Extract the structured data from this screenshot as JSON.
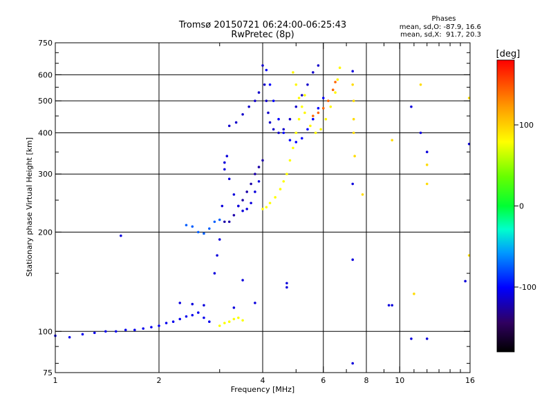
{
  "chart_data": {
    "type": "scatter",
    "title": "Tromsø 20150721 06:24:00-06:25:43",
    "subtitle": "RwPretec (8p)",
    "xlabel": "Frequency [MHz]",
    "ylabel": "Stationary phase Virtual Height [km]",
    "x_scale": "log",
    "y_scale": "log",
    "xlim": [
      1,
      16
    ],
    "ylim": [
      75,
      750
    ],
    "x_ticks": [
      1,
      2,
      4,
      6,
      8,
      10,
      16
    ],
    "x_tick_labels": [
      "1",
      "2",
      "4",
      "6",
      "8",
      "10",
      "16"
    ],
    "x_gridlines": [
      2,
      4,
      6,
      8,
      10
    ],
    "x_minor_ticks": [
      3,
      5,
      7,
      9,
      11,
      12,
      13,
      14,
      15
    ],
    "y_ticks": [
      75,
      100,
      200,
      300,
      400,
      500,
      600,
      750
    ],
    "y_tick_labels": [
      "75",
      "100",
      "200",
      "300",
      "400",
      "500",
      "600",
      "750"
    ],
    "y_gridlines": [
      100,
      200,
      300,
      400,
      500,
      600
    ],
    "y_minor_ticks": [
      80,
      90,
      150,
      250,
      350,
      450,
      550,
      650,
      700
    ],
    "grid": true,
    "phase_box": {
      "header": "Phases",
      "line1": "mean, sd,O: -87.9, 16.6",
      "line2": "mean, sd,X:  91.7, 20.3"
    },
    "colorbar": {
      "label": "[deg]",
      "range": [
        -180,
        180
      ],
      "ticks": [
        100,
        0,
        -100
      ],
      "tick_labels": [
        "100",
        "0",
        "-100"
      ]
    },
    "traces": [
      {
        "points": [
          [
            1.0,
            97
          ],
          [
            1.1,
            96
          ],
          [
            1.2,
            98
          ],
          [
            1.3,
            99
          ],
          [
            1.4,
            100
          ],
          [
            1.5,
            100
          ],
          [
            1.6,
            101
          ],
          [
            1.7,
            101
          ],
          [
            1.8,
            102
          ],
          [
            1.9,
            103
          ],
          [
            2.0,
            104
          ],
          [
            2.1,
            106
          ],
          [
            2.2,
            107
          ],
          [
            2.3,
            109
          ],
          [
            2.4,
            111
          ],
          [
            2.5,
            112
          ],
          [
            2.6,
            114
          ],
          [
            2.7,
            110
          ],
          [
            2.8,
            107
          ]
        ],
        "phase": -105
      },
      {
        "points": [
          [
            2.4,
            210
          ],
          [
            2.5,
            208
          ],
          [
            2.6,
            200
          ],
          [
            2.7,
            198
          ],
          [
            2.8,
            205
          ],
          [
            2.9,
            215
          ],
          [
            3.0,
            218
          ]
        ],
        "phase": -75
      },
      {
        "points": [
          [
            2.9,
            150
          ],
          [
            2.95,
            170
          ],
          [
            3.0,
            190
          ],
          [
            3.05,
            240
          ],
          [
            3.1,
            310
          ],
          [
            3.15,
            340
          ]
        ],
        "phase": -110
      },
      {
        "points": [
          [
            3.1,
            215
          ],
          [
            3.2,
            215
          ],
          [
            3.3,
            225
          ],
          [
            3.4,
            240
          ],
          [
            3.5,
            250
          ],
          [
            3.6,
            265
          ],
          [
            3.7,
            280
          ],
          [
            3.8,
            300
          ],
          [
            3.9,
            315
          ],
          [
            4.0,
            330
          ]
        ],
        "phase": -125
      },
      {
        "points": [
          [
            3.1,
            325
          ],
          [
            3.2,
            290
          ],
          [
            3.3,
            260
          ],
          [
            3.4,
            240
          ],
          [
            3.5,
            232
          ],
          [
            3.6,
            235
          ],
          [
            3.7,
            245
          ],
          [
            3.8,
            265
          ],
          [
            3.9,
            285
          ]
        ],
        "phase": -110
      },
      {
        "points": [
          [
            3.2,
            420
          ],
          [
            3.35,
            430
          ],
          [
            3.5,
            455
          ],
          [
            3.65,
            480
          ],
          [
            3.8,
            500
          ],
          [
            3.9,
            530
          ]
        ],
        "phase": -115
      },
      {
        "points": [
          [
            4.0,
            640
          ],
          [
            4.05,
            560
          ],
          [
            4.1,
            500
          ],
          [
            4.15,
            460
          ],
          [
            4.2,
            430
          ],
          [
            4.3,
            410
          ],
          [
            4.45,
            400
          ],
          [
            4.6,
            410
          ],
          [
            4.8,
            440
          ],
          [
            5.0,
            480
          ],
          [
            5.2,
            520
          ],
          [
            5.4,
            560
          ],
          [
            5.6,
            610
          ],
          [
            5.8,
            640
          ]
        ],
        "phase": -115
      },
      {
        "points": [
          [
            4.1,
            620
          ],
          [
            4.2,
            560
          ],
          [
            4.3,
            500
          ],
          [
            4.45,
            440
          ],
          [
            4.6,
            400
          ],
          [
            4.8,
            380
          ],
          [
            5.0,
            375
          ],
          [
            5.2,
            385
          ],
          [
            5.4,
            410
          ],
          [
            5.6,
            440
          ],
          [
            5.8,
            475
          ],
          [
            6.0,
            510
          ]
        ],
        "phase": -100
      },
      {
        "points": [
          [
            4.0,
            235
          ],
          [
            4.1,
            238
          ],
          [
            4.2,
            245
          ],
          [
            4.35,
            255
          ],
          [
            4.5,
            270
          ],
          [
            4.6,
            285
          ],
          [
            4.7,
            300
          ],
          [
            4.8,
            330
          ],
          [
            4.9,
            360
          ],
          [
            5.0,
            400
          ],
          [
            5.1,
            440
          ],
          [
            5.2,
            480
          ],
          [
            5.3,
            520
          ]
        ],
        "phase": 90
      },
      {
        "points": [
          [
            4.9,
            610
          ],
          [
            5.0,
            560
          ],
          [
            5.1,
            510
          ],
          [
            5.3,
            460
          ],
          [
            5.5,
            420
          ],
          [
            5.7,
            400
          ],
          [
            5.9,
            410
          ],
          [
            6.1,
            440
          ],
          [
            6.3,
            480
          ],
          [
            6.5,
            530
          ],
          [
            6.6,
            580
          ],
          [
            6.7,
            630
          ]
        ],
        "phase": 92
      },
      {
        "points": [
          [
            5.6,
            450
          ],
          [
            5.8,
            460
          ],
          [
            6.0,
            475
          ],
          [
            6.2,
            500
          ],
          [
            6.4,
            540
          ],
          [
            6.5,
            570
          ]
        ],
        "phase": 140
      },
      {
        "points": [
          [
            3.0,
            104
          ],
          [
            3.1,
            106
          ],
          [
            3.2,
            107
          ],
          [
            3.3,
            109
          ],
          [
            3.4,
            110
          ],
          [
            3.5,
            108
          ]
        ],
        "phase": 88
      },
      {
        "points": [
          [
            1.55,
            195
          ],
          [
            2.3,
            122
          ],
          [
            2.5,
            121
          ],
          [
            2.7,
            120
          ],
          [
            3.3,
            118
          ],
          [
            3.5,
            143
          ],
          [
            3.8,
            122
          ],
          [
            4.7,
            140
          ],
          [
            4.7,
            136
          ],
          [
            7.3,
            615
          ],
          [
            7.3,
            280
          ],
          [
            7.3,
            165
          ],
          [
            7.3,
            80
          ],
          [
            9.3,
            120
          ],
          [
            9.5,
            120
          ],
          [
            10.8,
            95
          ],
          [
            12.0,
            95
          ],
          [
            15.5,
            142
          ],
          [
            10.8,
            480
          ],
          [
            11.5,
            400
          ],
          [
            12.0,
            350
          ],
          [
            15.9,
            370
          ]
        ],
        "phase": -110
      },
      {
        "points": [
          [
            7.3,
            560
          ],
          [
            7.35,
            500
          ],
          [
            7.35,
            440
          ],
          [
            7.35,
            400
          ],
          [
            7.4,
            340
          ],
          [
            11.5,
            560
          ],
          [
            12.0,
            320
          ],
          [
            12.0,
            280
          ],
          [
            15.9,
            510
          ],
          [
            15.9,
            170
          ],
          [
            11.0,
            130
          ],
          [
            7.8,
            260
          ],
          [
            9.5,
            380
          ]
        ],
        "phase": 100
      }
    ]
  }
}
